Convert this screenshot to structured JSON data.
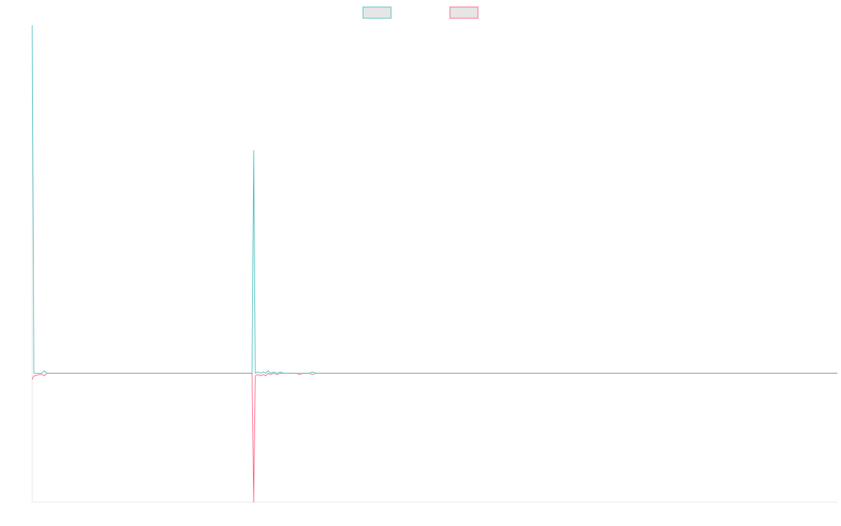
{
  "chart_data": {
    "type": "line",
    "title": "",
    "xlabel": "",
    "ylabel": "",
    "legend_position": "top-center",
    "grid": false,
    "xlim": [
      0,
      1000
    ],
    "ylim": [
      -100,
      270
    ],
    "series": [
      {
        "color": "#4bc0c0",
        "legend_fill": "#e6e6e6",
        "points": [
          [
            0,
            270
          ],
          [
            2,
            0
          ],
          [
            4,
            0
          ],
          [
            8,
            0
          ],
          [
            12,
            0
          ],
          [
            15,
            2
          ],
          [
            18,
            0
          ],
          [
            25,
            0
          ],
          [
            100,
            0
          ],
          [
            200,
            0
          ],
          [
            250,
            0
          ],
          [
            265,
            0
          ],
          [
            268,
            0
          ],
          [
            271,
            0
          ],
          [
            273,
            0
          ],
          [
            275,
            173
          ],
          [
            277,
            0
          ],
          [
            280,
            1
          ],
          [
            284,
            0
          ],
          [
            287,
            1
          ],
          [
            290,
            0
          ],
          [
            293,
            2
          ],
          [
            296,
            0
          ],
          [
            300,
            1
          ],
          [
            304,
            0
          ],
          [
            308,
            1
          ],
          [
            312,
            0
          ],
          [
            316,
            0
          ],
          [
            320,
            0
          ],
          [
            324,
            0
          ],
          [
            328,
            0
          ],
          [
            332,
            0
          ],
          [
            336,
            0
          ],
          [
            340,
            0
          ],
          [
            344,
            0
          ],
          [
            348,
            1
          ],
          [
            352,
            0
          ],
          [
            356,
            0
          ],
          [
            360,
            0
          ],
          [
            364,
            0
          ],
          [
            368,
            0
          ],
          [
            372,
            0
          ],
          [
            376,
            0
          ],
          [
            380,
            0
          ],
          [
            384,
            0
          ],
          [
            388,
            0
          ],
          [
            392,
            0
          ],
          [
            396,
            0
          ],
          [
            400,
            0
          ],
          [
            404,
            0
          ],
          [
            408,
            0
          ],
          [
            412,
            0
          ],
          [
            416,
            0
          ],
          [
            420,
            0
          ],
          [
            424,
            0
          ],
          [
            428,
            0
          ],
          [
            500,
            0
          ],
          [
            700,
            0
          ],
          [
            1000,
            0
          ]
        ]
      },
      {
        "color": "#ff6384",
        "legend_fill": "#e6e6e6",
        "points": [
          [
            0,
            -5
          ],
          [
            1,
            -3
          ],
          [
            2,
            -2
          ],
          [
            4,
            -2
          ],
          [
            8,
            -1
          ],
          [
            12,
            -1
          ],
          [
            15,
            -2
          ],
          [
            18,
            0
          ],
          [
            25,
            0
          ],
          [
            100,
            0
          ],
          [
            200,
            0
          ],
          [
            250,
            0
          ],
          [
            268,
            0
          ],
          [
            271,
            0
          ],
          [
            273,
            0
          ],
          [
            275,
            -100
          ],
          [
            277,
            -2
          ],
          [
            280,
            -1
          ],
          [
            284,
            -2
          ],
          [
            287,
            -1
          ],
          [
            290,
            -2
          ],
          [
            293,
            0
          ],
          [
            296,
            -1
          ],
          [
            300,
            0
          ],
          [
            304,
            -1
          ],
          [
            308,
            0
          ],
          [
            312,
            0
          ],
          [
            316,
            0
          ],
          [
            320,
            0
          ],
          [
            324,
            0
          ],
          [
            328,
            0
          ],
          [
            332,
            -1
          ],
          [
            336,
            0
          ],
          [
            340,
            0
          ],
          [
            344,
            0
          ],
          [
            348,
            -1
          ],
          [
            352,
            0
          ],
          [
            356,
            0
          ],
          [
            360,
            0
          ],
          [
            364,
            0
          ],
          [
            368,
            0
          ],
          [
            372,
            0
          ],
          [
            376,
            0
          ],
          [
            380,
            0
          ],
          [
            384,
            0
          ],
          [
            388,
            0
          ],
          [
            392,
            0
          ],
          [
            396,
            0
          ],
          [
            400,
            0
          ],
          [
            404,
            0
          ],
          [
            408,
            0
          ],
          [
            412,
            0
          ],
          [
            416,
            0
          ],
          [
            420,
            0
          ],
          [
            424,
            0
          ],
          [
            428,
            0
          ],
          [
            500,
            0
          ],
          [
            700,
            0
          ],
          [
            1000,
            0
          ]
        ]
      }
    ]
  }
}
